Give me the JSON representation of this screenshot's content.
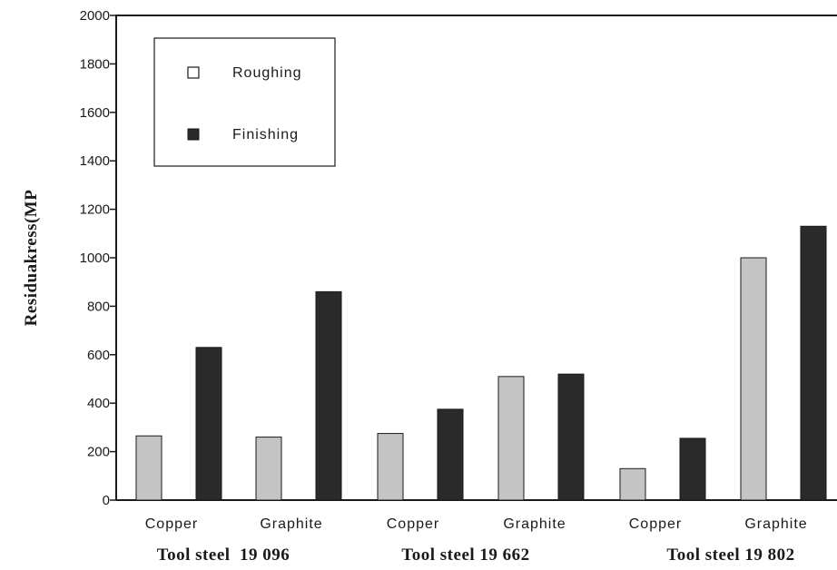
{
  "chart_data": {
    "type": "bar",
    "ylabel": "Residuakress(MP",
    "ylim": [
      0,
      2000
    ],
    "yticks": [
      0,
      200,
      400,
      600,
      800,
      1000,
      1200,
      1400,
      1600,
      1800,
      2000
    ],
    "ytick_labels": [
      "0",
      "200",
      "400",
      "600",
      "800",
      "1000",
      "1200",
      "1400",
      "1600",
      "1800",
      "2000"
    ],
    "categories": [
      "Copper",
      "Graphite",
      "Copper",
      "Graphite",
      "Copper",
      "Graphite"
    ],
    "groups": [
      "Tool steel  19 096",
      "Tool steel 19 662",
      "Tool steel 19 802"
    ],
    "series": [
      {
        "name": "Roughing",
        "color": "#c4c4c4",
        "values": [
          265,
          260,
          275,
          510,
          130,
          1000
        ]
      },
      {
        "name": "Finishing",
        "color": "#2a2a2a",
        "values": [
          630,
          860,
          375,
          520,
          255,
          1130
        ]
      }
    ],
    "legend": {
      "placement": "top-left",
      "entries": [
        "Roughing",
        "Finishing"
      ]
    },
    "grid": false
  }
}
